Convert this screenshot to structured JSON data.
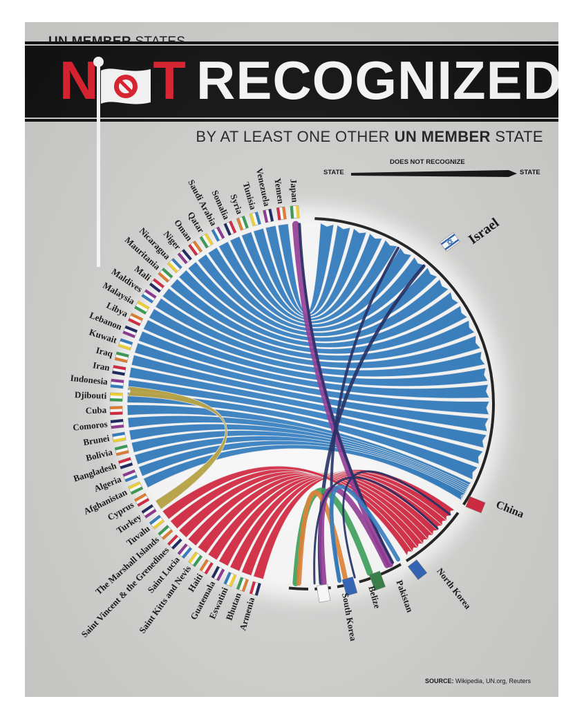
{
  "header": {
    "kicker_bold": "UN MEMBER",
    "kicker_rest": " STATES",
    "title_red_1": "N",
    "title_red_2": "T",
    "title_white": "RECOGNIZED",
    "subtitle_start": "BY AT LEAST ONE OTHER ",
    "subtitle_bold": "UN MEMBER",
    "subtitle_end": " STATE"
  },
  "legend": {
    "from": "STATE",
    "middle": "DOES NOT RECOGNIZE",
    "to": "STATE"
  },
  "source": {
    "label": "SOURCE:",
    "text": " Wikipedia, UN.org, Reuters"
  },
  "colors": {
    "blue": "#2a78be",
    "red": "#d3213a",
    "olive": "#b7a13a",
    "purple": "#8c2e8e",
    "navy": "#14205a",
    "orange": "#e07a28",
    "green": "#2f9a4e",
    "arc": "#1a1a1a"
  },
  "targets": [
    {
      "name": "Israel",
      "color": "#2a78be"
    },
    {
      "name": "China",
      "color": "#d3213a"
    },
    {
      "name": "North Korea",
      "color": "#14205a"
    },
    {
      "name": "Pakistan",
      "color": "#2f9a4e"
    },
    {
      "name": "Belize",
      "color": "#e07a28"
    },
    {
      "name": "South Korea",
      "color": "#8c2e8e"
    },
    {
      "name": "Armenia",
      "color": "#d3213a"
    }
  ],
  "states": [
    "Armenia",
    "Bhutan",
    "Eswatini",
    "Guatemala",
    "Haiti",
    "Saint Kitts and Nevis",
    "Saint Lucia",
    "Saint Vincent & the Grenedines",
    "The Marshall Islands",
    "Tuvalu",
    "Turkey",
    "Cyprus",
    "Afghanistan",
    "Algeria",
    "Bangladesh",
    "Bolivia",
    "Brunei",
    "Comoros",
    "Cuba",
    "Djibouti",
    "Indonesia",
    "Iran",
    "Iraq",
    "Kuwait",
    "Lebanon",
    "Libya",
    "Malaysia",
    "Maldives",
    "Mali",
    "Mauritania",
    "Nicaragua",
    "Niger",
    "Oman",
    "Qatar",
    "Saudi Arabia",
    "Somalia",
    "Syria",
    "Tunisia",
    "Venezuela",
    "Yemen",
    "Japan"
  ],
  "relations": [
    {
      "from": "Japan",
      "to": "North Korea",
      "color": "#8c2e8e"
    },
    {
      "from": "South Korea",
      "to": "North Korea",
      "color": "#8c2e8e"
    },
    {
      "from": "Turkey",
      "to": "Cyprus",
      "color": "#b7a13a"
    },
    {
      "from": "Cyprus",
      "to": "Turkey",
      "color": "#b7a13a"
    },
    {
      "from": "Pakistan",
      "to": "Armenia",
      "color": "#2f9a4e"
    },
    {
      "from": "Armenia",
      "to": "Pakistan",
      "color": "#e07a28"
    },
    {
      "from": "Guatemala",
      "to": "Belize",
      "color": "#e07a28"
    },
    {
      "from": "North Korea",
      "to": "South Korea",
      "color": "#14205a"
    },
    {
      "from": "Israel",
      "to": "China",
      "color": "#14205a"
    },
    {
      "from": "China",
      "to": "Israel",
      "color": "#14205a"
    }
  ]
}
